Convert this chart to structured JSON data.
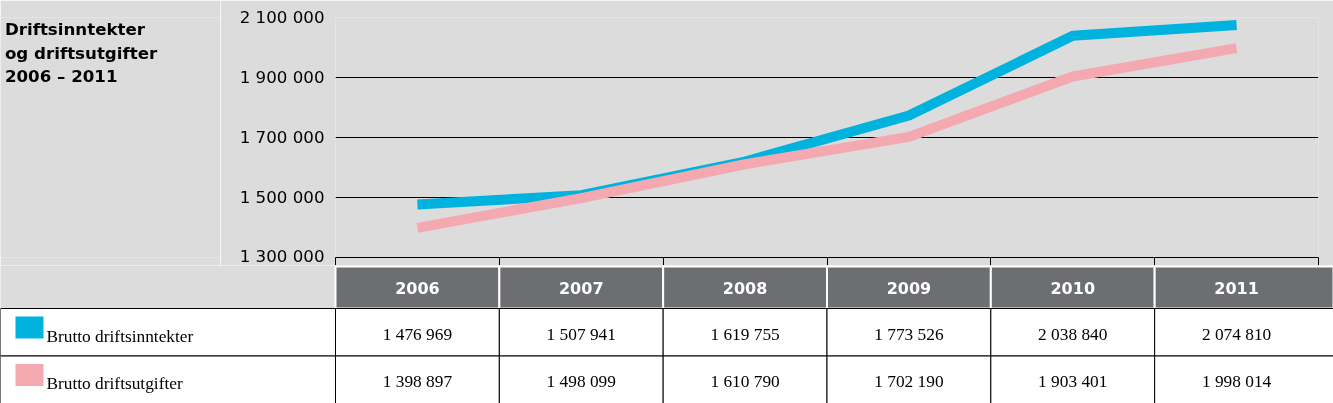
{
  "chart_data": {
    "type": "line",
    "title": "Driftsinntekter\nog driftsutgifter\n2006 – 2011",
    "categories": [
      "2006",
      "2007",
      "2008",
      "2009",
      "2010",
      "2011"
    ],
    "series": [
      {
        "name": "Brutto driftsinntekter",
        "color": "#00b2de",
        "values": [
          1476969,
          1507941,
          1619755,
          1773526,
          2038840,
          2074810
        ]
      },
      {
        "name": "Brutto driftsutgifter",
        "color": "#f4a9b1",
        "values": [
          1398897,
          1498099,
          1610790,
          1702190,
          1903401,
          1998014
        ]
      }
    ],
    "ylim": [
      1300000,
      2100000
    ],
    "yticks": [
      {
        "value": 1300000,
        "label": "1 300 000"
      },
      {
        "value": 1500000,
        "label": "1 500 000"
      },
      {
        "value": 1700000,
        "label": "1 700 000"
      },
      {
        "value": 1900000,
        "label": "1 900 000"
      },
      {
        "value": 2100000,
        "label": "2 100 000"
      }
    ],
    "grid": "y",
    "legend": "bottom",
    "data_labels": true,
    "marker": "none",
    "line_style": "solid"
  }
}
